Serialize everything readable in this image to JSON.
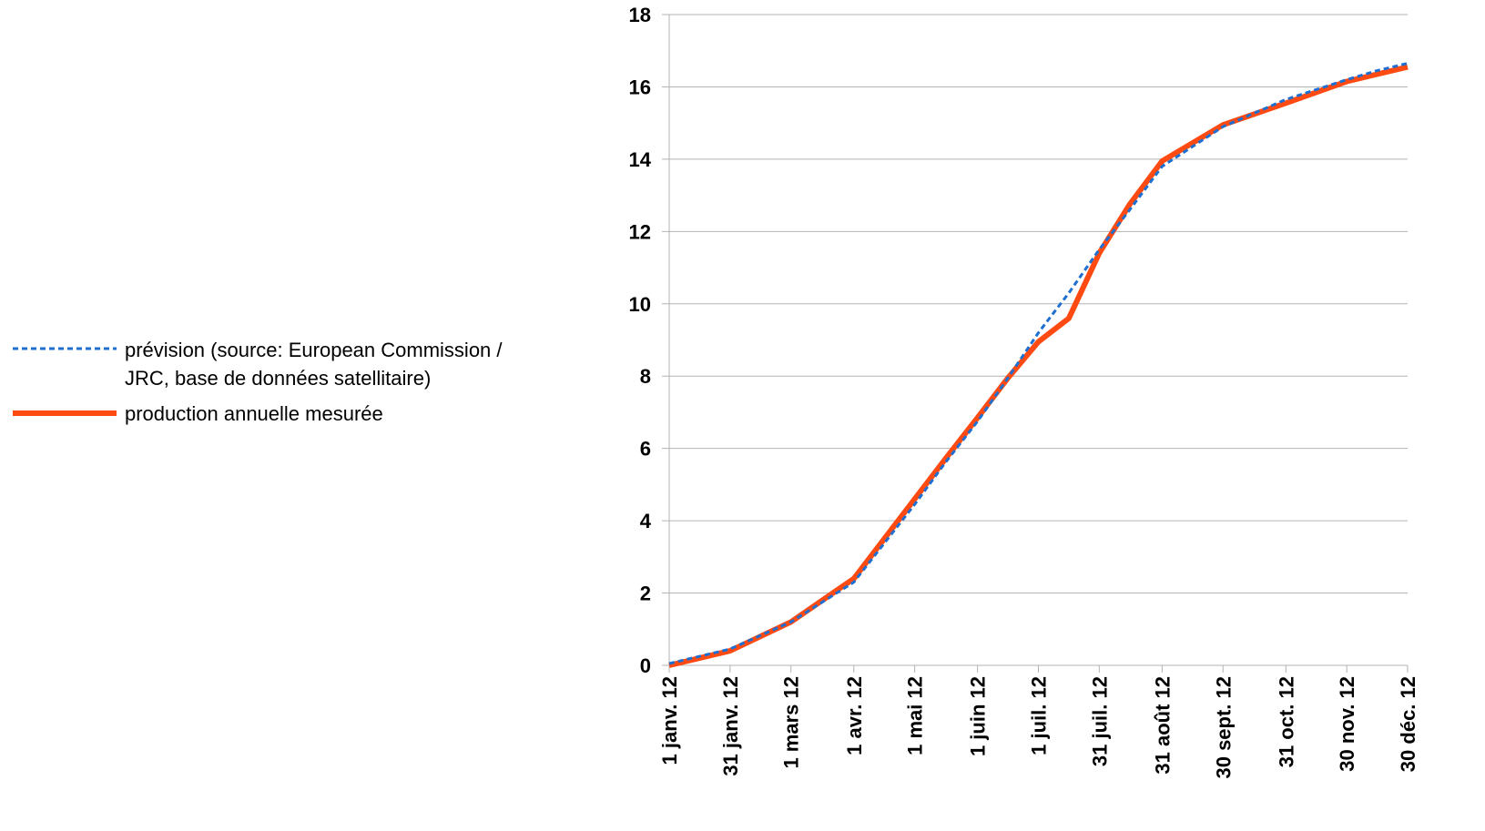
{
  "chart_data": {
    "type": "line",
    "x": [
      "1 janv. 12",
      "31 janv. 12",
      "1 mars 12",
      "1 avr. 12",
      "1 mai 12",
      "1 juin 12",
      "1 juil. 12",
      "31 juil. 12",
      "31 août 12",
      "30 sept. 12",
      "31 oct. 12",
      "30 nov. 12",
      "30 déc. 12"
    ],
    "x_dates": [
      "2012-01-01",
      "2012-01-31",
      "2012-03-01",
      "2012-04-01",
      "2012-05-01",
      "2012-06-01",
      "2012-07-01",
      "2012-07-31",
      "2012-08-31",
      "2012-09-30",
      "2012-10-31",
      "2012-11-30",
      "2012-12-30"
    ],
    "series": [
      {
        "name": "prévision  (source: European Commission / JRC, base de données satellitaire)",
        "name_lines": [
          "prévision  (source: European Commission /",
          "JRC, base de données satellitaire)"
        ],
        "color": "#1f6fd1",
        "style": "dashed",
        "points": [
          [
            "2012-01-01",
            0.05
          ],
          [
            "2012-01-31",
            0.45
          ],
          [
            "2012-03-01",
            1.2
          ],
          [
            "2012-04-01",
            2.3
          ],
          [
            "2012-05-01",
            4.45
          ],
          [
            "2012-05-16",
            5.6
          ],
          [
            "2012-06-01",
            6.75
          ],
          [
            "2012-06-16",
            7.95
          ],
          [
            "2012-07-01",
            9.2
          ],
          [
            "2012-07-16",
            10.3
          ],
          [
            "2012-07-31",
            11.5
          ],
          [
            "2012-08-15",
            12.6
          ],
          [
            "2012-08-31",
            13.8
          ],
          [
            "2012-09-30",
            14.9
          ],
          [
            "2012-10-31",
            15.65
          ],
          [
            "2012-11-30",
            16.2
          ],
          [
            "2012-12-15",
            16.45
          ],
          [
            "2012-12-30",
            16.65
          ]
        ]
      },
      {
        "name": "production annuelle mesurée",
        "color": "#ff4a12",
        "style": "solid",
        "points": [
          [
            "2012-01-01",
            0.0
          ],
          [
            "2012-01-31",
            0.4
          ],
          [
            "2012-03-01",
            1.2
          ],
          [
            "2012-04-01",
            2.4
          ],
          [
            "2012-05-01",
            4.6
          ],
          [
            "2012-05-16",
            5.7
          ],
          [
            "2012-06-01",
            6.85
          ],
          [
            "2012-06-16",
            7.95
          ],
          [
            "2012-07-01",
            8.95
          ],
          [
            "2012-07-16",
            9.6
          ],
          [
            "2012-07-31",
            11.4
          ],
          [
            "2012-08-15",
            12.75
          ],
          [
            "2012-08-31",
            13.95
          ],
          [
            "2012-09-30",
            14.95
          ],
          [
            "2012-10-31",
            15.55
          ],
          [
            "2012-11-30",
            16.15
          ],
          [
            "2012-12-15",
            16.35
          ],
          [
            "2012-12-30",
            16.55
          ]
        ]
      }
    ],
    "y_ticks": [
      "0",
      "2",
      "4",
      "6",
      "8",
      "10",
      "12",
      "14",
      "16",
      "18"
    ],
    "ylim": [
      0,
      18
    ],
    "grid": true,
    "legend_position": "left",
    "title": "",
    "xlabel": "",
    "ylabel": ""
  }
}
